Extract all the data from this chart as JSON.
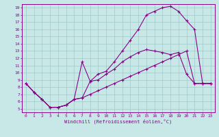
{
  "xlabel": "Windchill (Refroidissement éolien,°C)",
  "bg_color": "#c8e8e8",
  "grid_color": "#a0c8c8",
  "line_color": "#880088",
  "xlim": [
    -0.5,
    23.5
  ],
  "ylim": [
    4.5,
    19.5
  ],
  "xticks": [
    0,
    1,
    2,
    3,
    4,
    5,
    6,
    7,
    8,
    9,
    10,
    11,
    12,
    13,
    14,
    15,
    16,
    17,
    18,
    19,
    20,
    21,
    22,
    23
  ],
  "yticks": [
    5,
    6,
    7,
    8,
    9,
    10,
    11,
    12,
    13,
    14,
    15,
    16,
    17,
    18,
    19
  ],
  "line_top_x": [
    0,
    1,
    2,
    3,
    4,
    5,
    6,
    7,
    8,
    9,
    10,
    11,
    12,
    13,
    14,
    15,
    16,
    17,
    18,
    19,
    20,
    21,
    22,
    23
  ],
  "line_top_y": [
    8.5,
    7.3,
    6.3,
    5.2,
    5.2,
    5.5,
    6.3,
    6.5,
    8.8,
    9.8,
    10.2,
    11.5,
    13.0,
    14.5,
    16.0,
    18.0,
    18.5,
    19.0,
    19.2,
    18.5,
    17.2,
    16.0,
    8.5,
    8.5
  ],
  "line_mid_x": [
    0,
    1,
    2,
    3,
    4,
    5,
    6,
    7,
    8,
    9,
    10,
    11,
    12,
    13,
    14,
    15,
    16,
    17,
    18,
    19,
    20,
    21,
    22,
    23
  ],
  "line_mid_y": [
    8.5,
    7.3,
    6.3,
    5.2,
    5.2,
    5.5,
    6.3,
    11.5,
    8.8,
    9.0,
    9.8,
    10.5,
    11.5,
    12.2,
    12.8,
    13.2,
    13.0,
    12.8,
    12.5,
    12.8,
    9.8,
    8.5,
    8.5,
    8.5
  ],
  "line_bot_x": [
    0,
    1,
    2,
    3,
    4,
    5,
    6,
    7,
    8,
    9,
    10,
    11,
    12,
    13,
    14,
    15,
    16,
    17,
    18,
    19,
    20,
    21,
    22,
    23
  ],
  "line_bot_y": [
    8.5,
    7.3,
    6.3,
    5.2,
    5.2,
    5.5,
    6.3,
    6.5,
    7.0,
    7.5,
    8.0,
    8.5,
    9.0,
    9.5,
    10.0,
    10.5,
    11.0,
    11.5,
    12.0,
    12.5,
    13.0,
    8.5,
    8.5,
    8.5
  ]
}
